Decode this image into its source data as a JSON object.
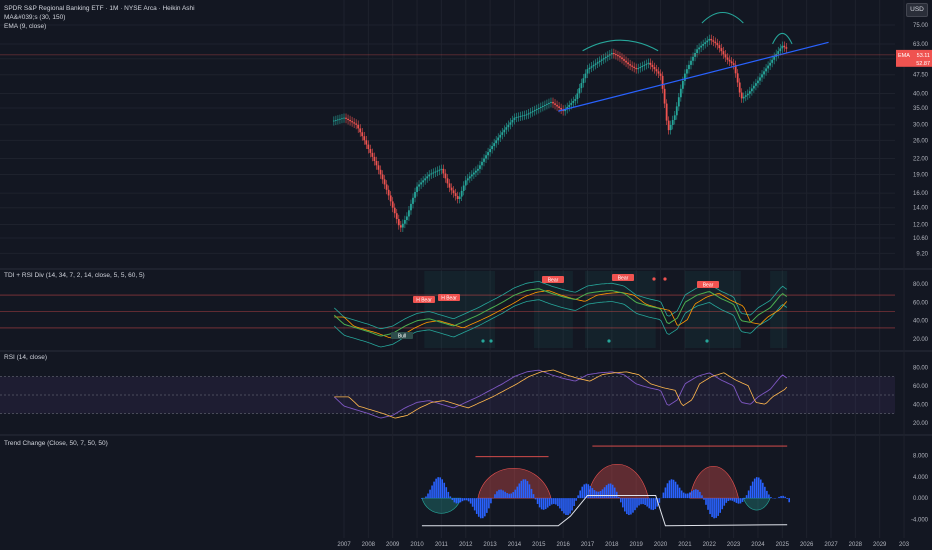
{
  "header": {
    "title": "SPDR S&P Regional Banking ETF · 1M · NYSE Arca · Heikin Ashi",
    "ind1": "MA&#039;s (30, 150)",
    "ind2": "EMA (9, close)",
    "currency": "USD"
  },
  "panes": {
    "tdi": "TDI + RSI Div (14, 34, 7, 2, 14, close, 5, 5, 60, 5)",
    "rsi": "RSI (14, close)",
    "trend": "Trend Change (Close, 50, 7, 50, 50)"
  },
  "price_labels": {
    "current": "EMA",
    "current_value": "53.11",
    "second_value": "52.87"
  },
  "tdi_signals": {
    "bull": "Bull",
    "hbear": "H Bear",
    "bear": "Bear"
  },
  "colors": {
    "bg": "#131722",
    "grid": "#1e222d",
    "up": "#26a69a",
    "down": "#ef5350",
    "trend": "#2962ff",
    "curve": "#26a69a",
    "axis_text": "#b2b5be"
  },
  "chart_data": [
    {
      "type": "line",
      "title": "SPDR S&P Regional Banking ETF · 1M · NYSE Arca · Heikin Ashi",
      "y_scale": "log",
      "ylim": [
        8.5,
        80
      ],
      "y_ticks": [
        "75.00",
        "63.00",
        "55.00",
        "47.50",
        "40.00",
        "35.00",
        "30.00",
        "26.00",
        "22.00",
        "19.00",
        "16.00",
        "14.00",
        "12.00",
        "10.60",
        "9.20"
      ],
      "x_ticks": [
        "2007",
        "2008",
        "2009",
        "2010",
        "2011",
        "2012",
        "2013",
        "2014",
        "2015",
        "2016",
        "2017",
        "2018",
        "2019",
        "2020",
        "2021",
        "2022",
        "2023",
        "2024",
        "2025",
        "2026",
        "2027",
        "2028",
        "2029",
        "203"
      ],
      "series": [
        {
          "x": [
            2006.5,
            2007.0,
            2007.5,
            2008.0,
            2008.5,
            2009.0,
            2009.3,
            2009.6,
            2010.0,
            2010.5,
            2011.0,
            2011.3,
            2011.7,
            2012.0,
            2012.5,
            2013.0,
            2013.5,
            2014.0,
            2014.5,
            2015.0,
            2015.5,
            2016.0,
            2016.5,
            2017.0,
            2017.5,
            2018.0,
            2018.3,
            2018.7,
            2019.0,
            2019.5,
            2020.0,
            2020.3,
            2020.6,
            2021.0,
            2021.5,
            2022.0,
            2022.3,
            2022.7,
            2023.0,
            2023.3,
            2023.6,
            2024.0,
            2024.5,
            2025.0,
            2025.2
          ],
          "values": [
            31,
            32,
            30,
            24,
            19,
            14,
            11.5,
            13,
            17,
            19,
            20,
            17,
            15,
            18,
            20,
            24,
            28,
            32,
            33,
            35,
            37,
            34,
            38,
            50,
            54,
            58,
            56,
            52,
            50,
            53,
            47,
            28,
            33,
            48,
            60,
            66,
            63,
            55,
            52,
            38,
            40,
            45,
            53,
            62,
            60
          ]
        }
      ],
      "trendline": {
        "x": [
          2015.8,
          2026.9
        ],
        "values": [
          34,
          64
        ]
      }
    },
    {
      "type": "line",
      "title": "TDI + RSI Div (14, 34, 7, 2, 14, close, 5, 5, 60, 5)",
      "ylim": [
        10,
        90
      ],
      "y_ticks": [
        "80.00",
        "60.00",
        "40.00",
        "20.00"
      ],
      "levels": [
        68,
        50,
        32
      ]
    },
    {
      "type": "line",
      "title": "RSI (14, close)",
      "ylim": [
        10,
        90
      ],
      "y_ticks": [
        "80.00",
        "60.00",
        "40.00",
        "20.00"
      ],
      "levels": [
        70,
        50,
        30
      ],
      "series": [
        {
          "name": "RSI",
          "x": [
            2006.6,
            2007.0,
            2007.5,
            2008.0,
            2008.5,
            2009.0,
            2009.5,
            2010.0,
            2010.5,
            2011.0,
            2011.5,
            2012.0,
            2012.5,
            2013.0,
            2013.5,
            2014.0,
            2014.5,
            2015.0,
            2015.5,
            2016.0,
            2016.5,
            2017.0,
            2017.5,
            2018.0,
            2018.5,
            2019.0,
            2019.5,
            2020.0,
            2020.3,
            2020.7,
            2021.0,
            2021.5,
            2022.0,
            2022.5,
            2023.0,
            2023.3,
            2023.7,
            2024.0,
            2024.5,
            2025.0,
            2025.2
          ],
          "values": [
            48,
            38,
            34,
            30,
            25,
            28,
            36,
            42,
            44,
            40,
            36,
            42,
            48,
            55,
            62,
            70,
            75,
            77,
            72,
            68,
            65,
            72,
            74,
            75,
            72,
            62,
            58,
            55,
            38,
            45,
            62,
            70,
            74,
            66,
            60,
            42,
            40,
            48,
            56,
            72,
            68
          ]
        }
      ]
    },
    {
      "type": "bar",
      "title": "Trend Change (Close, 50, 7, 50, 50)",
      "ylim": [
        -6,
        10
      ],
      "y_ticks": [
        "8.000",
        "4.000",
        "0.000",
        "-4.000"
      ]
    }
  ]
}
